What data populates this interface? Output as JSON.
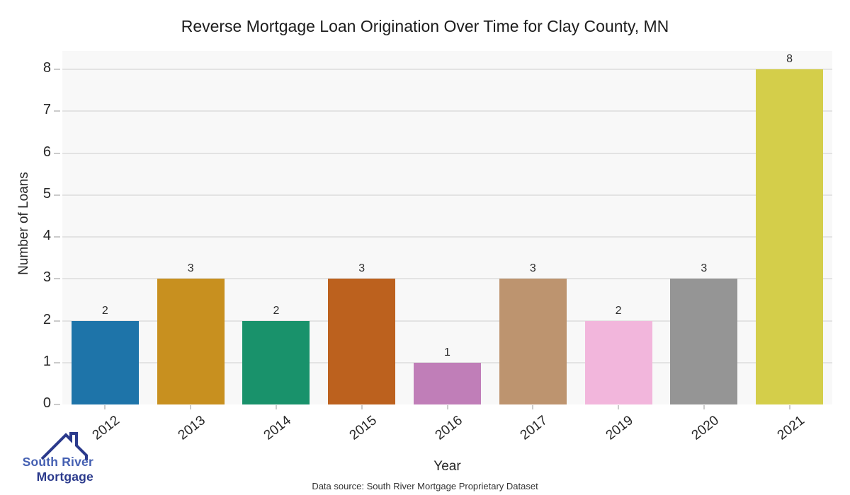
{
  "chart_data": {
    "type": "bar",
    "title": "Reverse Mortgage Loan Origination Over Time for Clay County, MN",
    "xlabel": "Year",
    "ylabel": "Number of Loans",
    "categories": [
      "2012",
      "2013",
      "2014",
      "2015",
      "2016",
      "2017",
      "2019",
      "2020",
      "2021"
    ],
    "values": [
      2,
      3,
      2,
      3,
      1,
      3,
      2,
      3,
      8
    ],
    "bar_colors": [
      "#1e74a9",
      "#c8901f",
      "#19926b",
      "#bc611e",
      "#c07eb8",
      "#bd946f",
      "#f2b6dc",
      "#959595",
      "#d4ce4a"
    ],
    "value_labels": [
      "2",
      "3",
      "2",
      "3",
      "1",
      "3",
      "2",
      "3",
      "8"
    ],
    "ylim": [
      0,
      8
    ],
    "yticks": [
      0,
      1,
      2,
      3,
      4,
      5,
      6,
      7,
      8
    ],
    "grid": true,
    "legend": false,
    "plot_bg": "#f8f8f8",
    "grid_color": "#e3e3e3"
  },
  "caption": "Data source: South River Mortgage Proprietary Dataset",
  "branding": {
    "logo_line1": "South River",
    "logo_line2": "Mortgage",
    "logo_color1": "#4560b2",
    "logo_color2": "#2b3a8c"
  }
}
